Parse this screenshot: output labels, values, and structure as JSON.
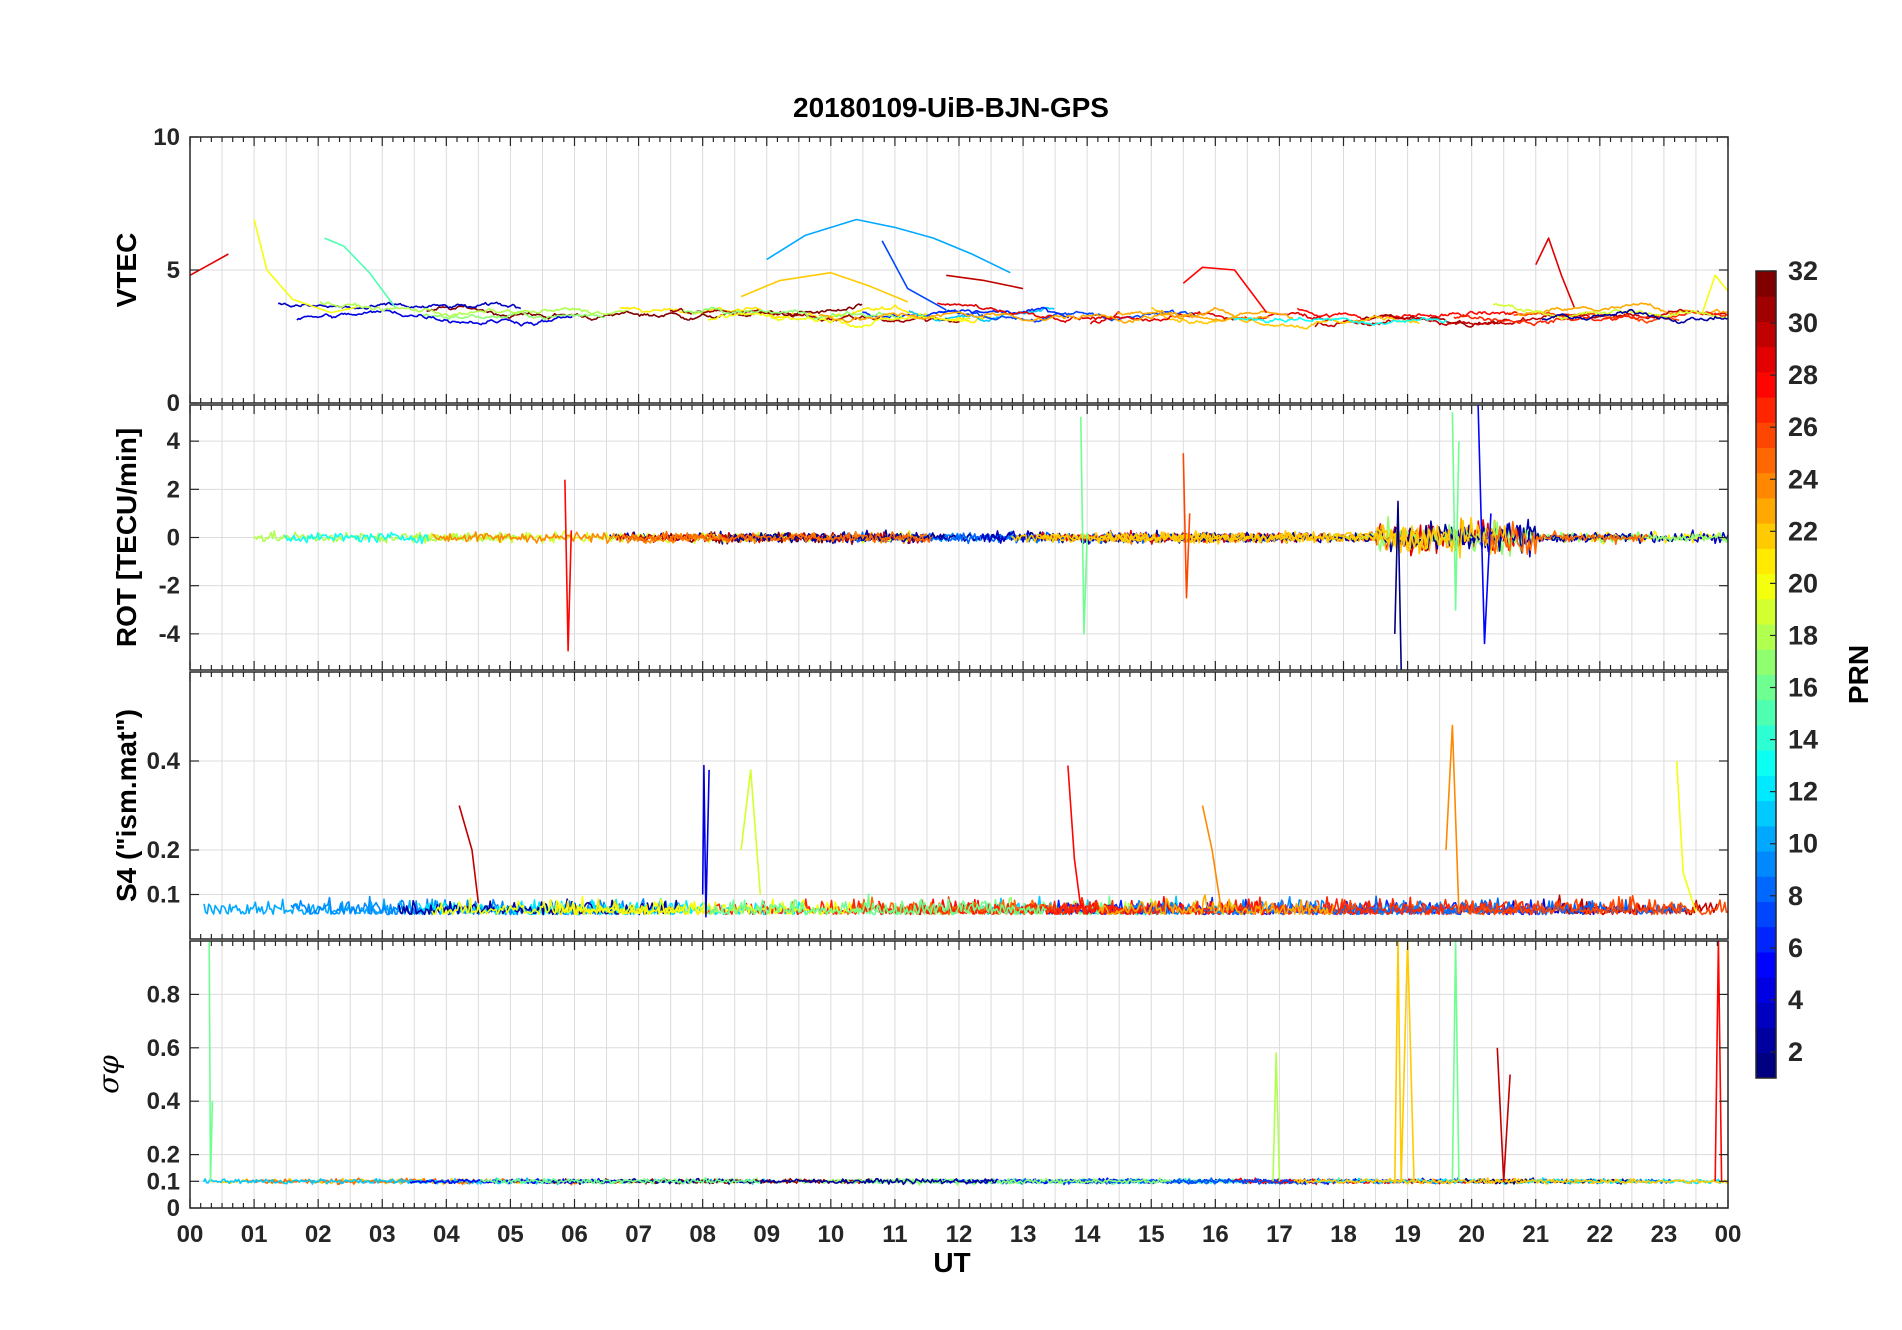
{
  "chart_data": {
    "type": "line",
    "title": "20180109-UiB-BJN-GPS",
    "xlabel": "UT",
    "x_ticks": [
      "00",
      "01",
      "02",
      "03",
      "04",
      "05",
      "06",
      "07",
      "08",
      "09",
      "10",
      "11",
      "12",
      "13",
      "14",
      "15",
      "16",
      "17",
      "18",
      "19",
      "20",
      "21",
      "22",
      "23",
      "00"
    ],
    "xlim": [
      0,
      24
    ],
    "x_unit": "hours UT",
    "grid": true,
    "colormap": "jet",
    "colorbar": {
      "label": "PRN",
      "range": [
        1,
        32
      ],
      "ticks": [
        "2",
        "4",
        "6",
        "8",
        "10",
        "12",
        "14",
        "16",
        "18",
        "20",
        "22",
        "24",
        "26",
        "28",
        "30",
        "32"
      ]
    },
    "panels": [
      {
        "name": "vtec",
        "ylabel": "VTEC",
        "ylim": [
          0,
          10
        ],
        "y_ticks": [
          "0",
          "5",
          "10"
        ],
        "series": [
          {
            "prn": 29,
            "x": [
              0.0,
              0.3,
              0.6
            ],
            "y": [
              4.8,
              5.2,
              5.6
            ]
          },
          {
            "prn": 20,
            "x": [
              1.0,
              1.2,
              1.6,
              2.2,
              2.6
            ],
            "y": [
              6.9,
              5.0,
              3.9,
              3.4,
              3.6
            ]
          },
          {
            "prn": 15,
            "x": [
              2.1,
              2.4,
              2.8,
              3.2
            ],
            "y": [
              6.2,
              5.9,
              4.9,
              3.6
            ]
          },
          {
            "prn": 10,
            "x": [
              9.0,
              9.6,
              10.4,
              11.0,
              11.6,
              12.2,
              12.8
            ],
            "y": [
              5.4,
              6.3,
              6.9,
              6.6,
              6.2,
              5.6,
              4.9
            ]
          },
          {
            "prn": 7,
            "x": [
              10.8,
              11.2,
              11.8
            ],
            "y": [
              6.1,
              4.3,
              3.5
            ]
          },
          {
            "prn": 22,
            "x": [
              8.6,
              9.2,
              10.0,
              10.6,
              11.2
            ],
            "y": [
              4.0,
              4.6,
              4.9,
              4.4,
              3.8
            ]
          },
          {
            "prn": 30,
            "x": [
              11.8,
              12.4,
              13.0
            ],
            "y": [
              4.8,
              4.6,
              4.3
            ]
          },
          {
            "prn": 28,
            "x": [
              15.5,
              15.8,
              16.3,
              16.8
            ],
            "y": [
              4.5,
              5.1,
              5.0,
              3.4
            ]
          },
          {
            "prn": 29,
            "x": [
              21.0,
              21.2,
              21.4,
              21.6
            ],
            "y": [
              5.2,
              6.2,
              4.8,
              3.6
            ]
          },
          {
            "prn": 20,
            "x": [
              23.6,
              23.8,
              24.0
            ],
            "y": [
              3.4,
              4.8,
              4.2
            ]
          }
        ]
      },
      {
        "name": "rot",
        "ylabel": "ROT [TECU/min]",
        "ylim": [
          -5.5,
          5.5
        ],
        "y_ticks": [
          "-4",
          "-2",
          "0",
          "2",
          "4"
        ],
        "series": [
          {
            "prn": 28,
            "x": [
              5.85,
              5.9,
              5.95
            ],
            "y": [
              2.4,
              -4.7,
              0.3
            ]
          },
          {
            "prn": 16,
            "x": [
              13.9,
              13.95,
              14.0
            ],
            "y": [
              5.0,
              -4.0,
              0.2
            ]
          },
          {
            "prn": 5,
            "x": [
              20.1,
              20.2,
              20.3
            ],
            "y": [
              5.5,
              -4.4,
              1.0
            ]
          },
          {
            "prn": 1,
            "x": [
              18.8,
              18.85,
              18.9
            ],
            "y": [
              -4.0,
              1.5,
              -5.5
            ]
          },
          {
            "prn": 16,
            "x": [
              19.7,
              19.75,
              19.8
            ],
            "y": [
              5.2,
              -3.0,
              4.0
            ]
          },
          {
            "prn": 26,
            "x": [
              15.5,
              15.55,
              15.6
            ],
            "y": [
              3.5,
              -2.5,
              1.0
            ]
          }
        ]
      },
      {
        "name": "s4",
        "ylabel": "S4 (\"ism.mat\")",
        "ylim": [
          0,
          0.6
        ],
        "y_ticks": [
          "0.1",
          "0.2",
          "0.4"
        ],
        "series": [
          {
            "prn": 4,
            "x": [
              8.0,
              8.02,
              8.05,
              8.1
            ],
            "y": [
              0.1,
              0.39,
              0.05,
              0.38
            ]
          },
          {
            "prn": 19,
            "x": [
              8.6,
              8.75,
              8.9
            ],
            "y": [
              0.2,
              0.38,
              0.1
            ]
          },
          {
            "prn": 24,
            "x": [
              19.6,
              19.7,
              19.8
            ],
            "y": [
              0.2,
              0.48,
              0.06
            ]
          },
          {
            "prn": 30,
            "x": [
              4.2,
              4.4,
              4.5
            ],
            "y": [
              0.3,
              0.2,
              0.08
            ]
          },
          {
            "prn": 28,
            "x": [
              13.7,
              13.8,
              13.9
            ],
            "y": [
              0.39,
              0.18,
              0.07
            ]
          },
          {
            "prn": 20,
            "x": [
              23.2,
              23.3,
              23.5
            ],
            "y": [
              0.4,
              0.15,
              0.06
            ]
          },
          {
            "prn": 24,
            "x": [
              15.8,
              15.95,
              16.1
            ],
            "y": [
              0.3,
              0.2,
              0.06
            ]
          }
        ]
      },
      {
        "name": "sigma_phi",
        "ylabel": "σφ",
        "ylim": [
          0,
          1
        ],
        "y_ticks": [
          "0",
          "0.1",
          "0.2",
          "0.4",
          "0.6",
          "0.8"
        ],
        "series": [
          {
            "prn": 16,
            "x": [
              0.3,
              0.32,
              0.35
            ],
            "y": [
              1.0,
              0.1,
              0.4
            ]
          },
          {
            "prn": 22,
            "x": [
              18.8,
              18.85,
              18.9,
              19.0,
              19.1
            ],
            "y": [
              0.1,
              1.0,
              0.1,
              1.0,
              0.1
            ]
          },
          {
            "prn": 16,
            "x": [
              19.7,
              19.75,
              19.8
            ],
            "y": [
              0.1,
              1.0,
              0.1
            ]
          },
          {
            "prn": 18,
            "x": [
              16.9,
              16.95,
              17.0
            ],
            "y": [
              0.1,
              0.58,
              0.1
            ]
          },
          {
            "prn": 28,
            "x": [
              23.8,
              23.85,
              23.9
            ],
            "y": [
              0.1,
              1.0,
              0.1
            ]
          },
          {
            "prn": 30,
            "x": [
              20.4,
              20.5,
              20.6
            ],
            "y": [
              0.6,
              0.1,
              0.5
            ]
          }
        ]
      }
    ]
  }
}
